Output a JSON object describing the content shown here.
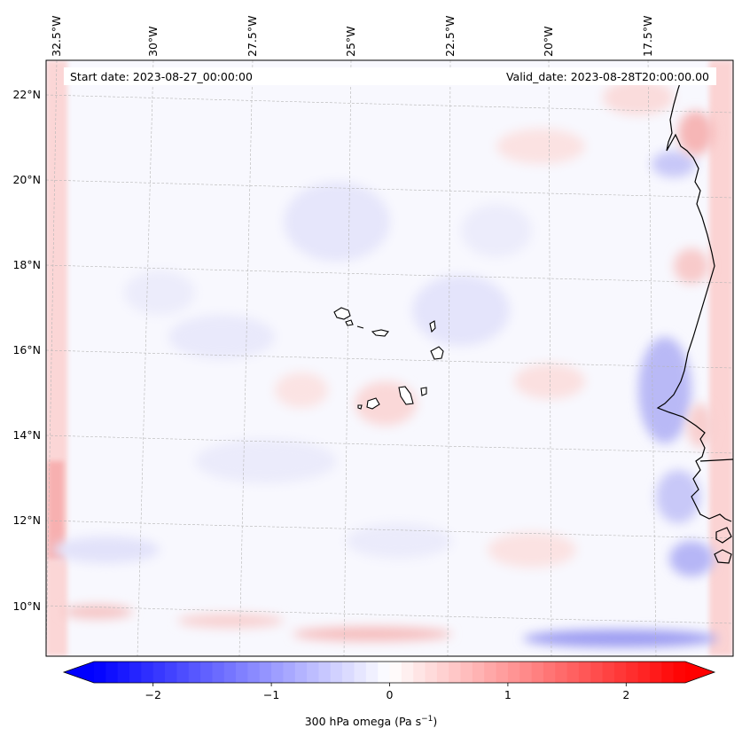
{
  "header": {
    "start_date": "Start date: 2023-08-27_00:00:00",
    "valid_date": "Valid_date: 2023-08-28T20:00:00.00"
  },
  "lon_labels": [
    "32.5°W",
    "30°W",
    "27.5°W",
    "25°W",
    "22.5°W",
    "20°W",
    "17.5°W"
  ],
  "lat_labels": [
    "22°N",
    "20°N",
    "18°N",
    "16°N",
    "14°N",
    "12°N",
    "10°N"
  ],
  "colorbar": {
    "tick_labels": [
      "−2",
      "−1",
      "0",
      "1",
      "2"
    ],
    "tick_values": [
      -2,
      -1,
      0,
      1,
      2
    ],
    "range": [
      -2.5,
      2.5
    ],
    "levels": 50,
    "label_prefix": "300 hPa omega (Pa s",
    "label_exp": "−1",
    "label_suffix": ")"
  },
  "colors": {
    "neg_max": "#0000ff",
    "zero": "#ffffff",
    "pos_max": "#ff0000",
    "coast": "#000000",
    "grid": "#b0b0b0"
  },
  "field": {
    "name": "300 hPa omega",
    "units": "Pa s-1",
    "region": "Cape Verde / West Africa"
  }
}
